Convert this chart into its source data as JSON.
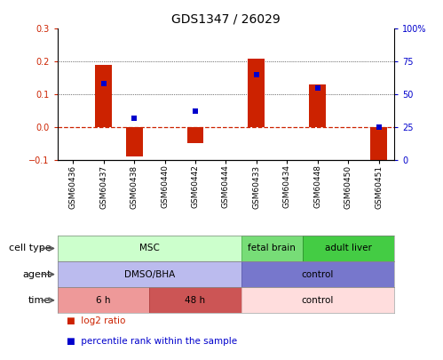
{
  "title": "GDS1347 / 26029",
  "samples": [
    "GSM60436",
    "GSM60437",
    "GSM60438",
    "GSM60440",
    "GSM60442",
    "GSM60444",
    "GSM60433",
    "GSM60434",
    "GSM60448",
    "GSM60450",
    "GSM60451"
  ],
  "log2_ratio": [
    0.0,
    0.19,
    -0.09,
    0.0,
    -0.05,
    0.0,
    0.21,
    0.0,
    0.13,
    0.0,
    -0.1
  ],
  "percentile": [
    null,
    58,
    32,
    null,
    37,
    null,
    65,
    null,
    55,
    null,
    25
  ],
  "ylim": [
    -0.1,
    0.3
  ],
  "yticks_left": [
    -0.1,
    0.0,
    0.1,
    0.2,
    0.3
  ],
  "bar_color": "#cc2200",
  "dot_color": "#0000cc",
  "cell_type_groups": [
    {
      "label": "MSC",
      "start": 0,
      "end": 6,
      "color": "#ccffcc",
      "edgecolor": "#88cc88"
    },
    {
      "label": "fetal brain",
      "start": 6,
      "end": 8,
      "color": "#77dd77",
      "edgecolor": "#44aa44"
    },
    {
      "label": "adult liver",
      "start": 8,
      "end": 11,
      "color": "#44cc44",
      "edgecolor": "#228822"
    }
  ],
  "agent_groups": [
    {
      "label": "DMSO/BHA",
      "start": 0,
      "end": 6,
      "color": "#bbbbee",
      "edgecolor": "#8888bb"
    },
    {
      "label": "control",
      "start": 6,
      "end": 11,
      "color": "#7777cc",
      "edgecolor": "#5555aa"
    }
  ],
  "time_groups": [
    {
      "label": "6 h",
      "start": 0,
      "end": 3,
      "color": "#ee9999",
      "edgecolor": "#cc7777"
    },
    {
      "label": "48 h",
      "start": 3,
      "end": 6,
      "color": "#cc5555",
      "edgecolor": "#aa3333"
    },
    {
      "label": "control",
      "start": 6,
      "end": 11,
      "color": "#ffdddd",
      "edgecolor": "#ddbbbb"
    }
  ]
}
